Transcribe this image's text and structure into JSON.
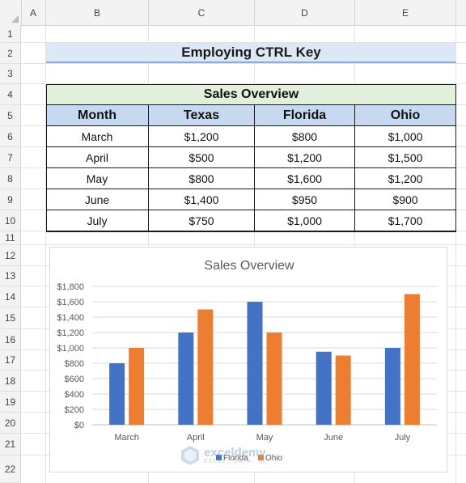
{
  "columns": [
    "A",
    "B",
    "C",
    "D",
    "E"
  ],
  "rows": [
    "1",
    "2",
    "3",
    "4",
    "5",
    "6",
    "7",
    "8",
    "9",
    "10",
    "11",
    "12",
    "13",
    "14",
    "15",
    "16",
    "17",
    "18",
    "19",
    "20",
    "21",
    "22"
  ],
  "title": "Employing CTRL Key",
  "table": {
    "title": "Sales Overview",
    "headers": [
      "Month",
      "Texas",
      "Florida",
      "Ohio"
    ],
    "rows": [
      [
        "March",
        "$1,200",
        "$800",
        "$1,000"
      ],
      [
        "April",
        "$500",
        "$1,200",
        "$1,500"
      ],
      [
        "May",
        "$800",
        "$1,600",
        "$1,200"
      ],
      [
        "June",
        "$1,400",
        "$950",
        "$900"
      ],
      [
        "July",
        "$750",
        "$1,000",
        "$1,700"
      ]
    ]
  },
  "watermark": {
    "name": "exceldemy",
    "tagline": "EXCEL · DATA · BI"
  },
  "chart_data": {
    "type": "bar",
    "title": "Sales Overview",
    "categories": [
      "March",
      "April",
      "May",
      "June",
      "July"
    ],
    "series": [
      {
        "name": "Florida",
        "values": [
          800,
          1200,
          1600,
          950,
          1000
        ],
        "color": "#4472c4"
      },
      {
        "name": "Ohio",
        "values": [
          1000,
          1500,
          1200,
          900,
          1700
        ],
        "color": "#ed7d31"
      }
    ],
    "ylim": [
      0,
      1800
    ],
    "yticks": [
      "$0",
      "$200",
      "$400",
      "$600",
      "$800",
      "$1,000",
      "$1,200",
      "$1,400",
      "$1,600",
      "$1,800"
    ],
    "grid": true,
    "legend": "bottom"
  }
}
